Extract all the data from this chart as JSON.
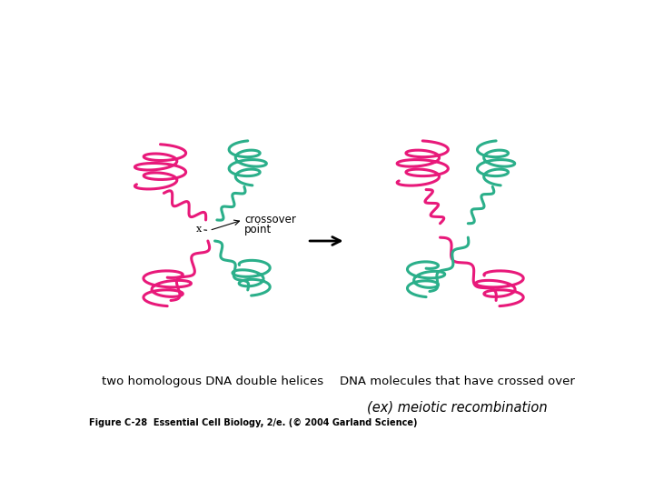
{
  "background_color": "#ffffff",
  "pink_color": "#E8197A",
  "green_color": "#2BAF8A",
  "text_color": "#000000",
  "label_left": "two homologous DNA double helices",
  "label_right": "DNA molecules that have crossed over",
  "caption": "(ex) meiotic recombination",
  "figure_credit": "Figure C-28  Essential Cell Biology, 2/e. (© 2004 Garland Science)",
  "crossover_label1": "crossover",
  "crossover_label2": "point",
  "x_label": "x"
}
